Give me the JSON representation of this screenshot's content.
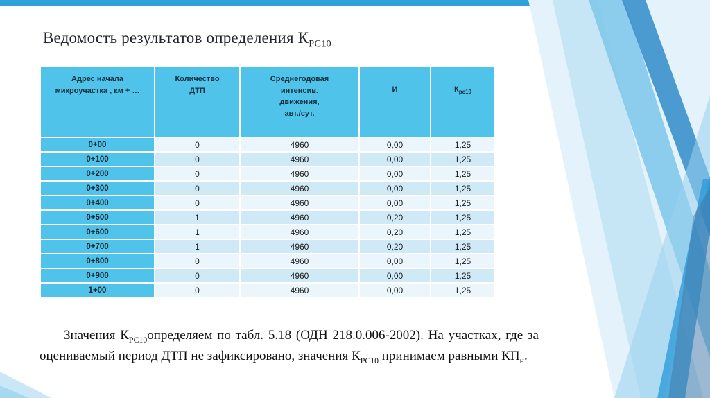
{
  "slide": {
    "title_segments": [
      {
        "t": "Ведомость результатов определения К"
      },
      {
        "t": "РС10",
        "sub": true
      }
    ]
  },
  "table": {
    "columns": [
      {
        "segments": [
          {
            "t": "Адрес начала"
          },
          {
            "br": true
          },
          {
            "t": "микроучастка , км + …"
          }
        ]
      },
      {
        "segments": [
          {
            "t": "Количество"
          },
          {
            "br": true
          },
          {
            "t": "ДТП"
          }
        ]
      },
      {
        "segments": [
          {
            "t": "Среднегодовая"
          },
          {
            "br": true
          },
          {
            "t": "интенсив."
          },
          {
            "br": true
          },
          {
            "t": "движения,"
          },
          {
            "br": true
          },
          {
            "t": "авт./сут."
          }
        ]
      },
      {
        "segments": [
          {
            "t": "И"
          }
        ]
      },
      {
        "segments": [
          {
            "t": "К"
          },
          {
            "t": "рс10",
            "sub": true
          }
        ]
      }
    ],
    "rows": [
      [
        "0+00",
        "0",
        "4960",
        "0,00",
        "1,25"
      ],
      [
        "0+100",
        "0",
        "4960",
        "0,00",
        "1,25"
      ],
      [
        "0+200",
        "0",
        "4960",
        "0,00",
        "1,25"
      ],
      [
        "0+300",
        "0",
        "4960",
        "0,00",
        "1,25"
      ],
      [
        "0+400",
        "0",
        "4960",
        "0,00",
        "1,25"
      ],
      [
        "0+500",
        "1",
        "4960",
        "0,20",
        "1,25"
      ],
      [
        "0+600",
        "1",
        "4960",
        "0,20",
        "1,25"
      ],
      [
        "0+700",
        "1",
        "4960",
        "0,20",
        "1,25"
      ],
      [
        "0+800",
        "0",
        "4960",
        "0,00",
        "1,25"
      ],
      [
        "0+900",
        "0",
        "4960",
        "0,00",
        "1,25"
      ],
      [
        "1+00",
        "0",
        "4960",
        "0,00",
        "1,25"
      ]
    ]
  },
  "note": {
    "segments": [
      {
        "t": "Значения К"
      },
      {
        "t": "РС10",
        "sub": true
      },
      {
        "t": "определяем по табл. 5.18 (ОДН 218.0.006-2002). На участках, где за оцениваемый период ДТП не зафиксировано, значения К"
      },
      {
        "t": "РС10",
        "sub": true
      },
      {
        "t": " принимаем равными КП"
      },
      {
        "t": "н",
        "sub": true
      },
      {
        "t": "."
      }
    ]
  },
  "colors": {
    "accent_header": "#4fc3e9",
    "row_light": "#eaf6fc",
    "row_medium": "#cfe9f6",
    "top_bar": "#2fa3d9"
  }
}
